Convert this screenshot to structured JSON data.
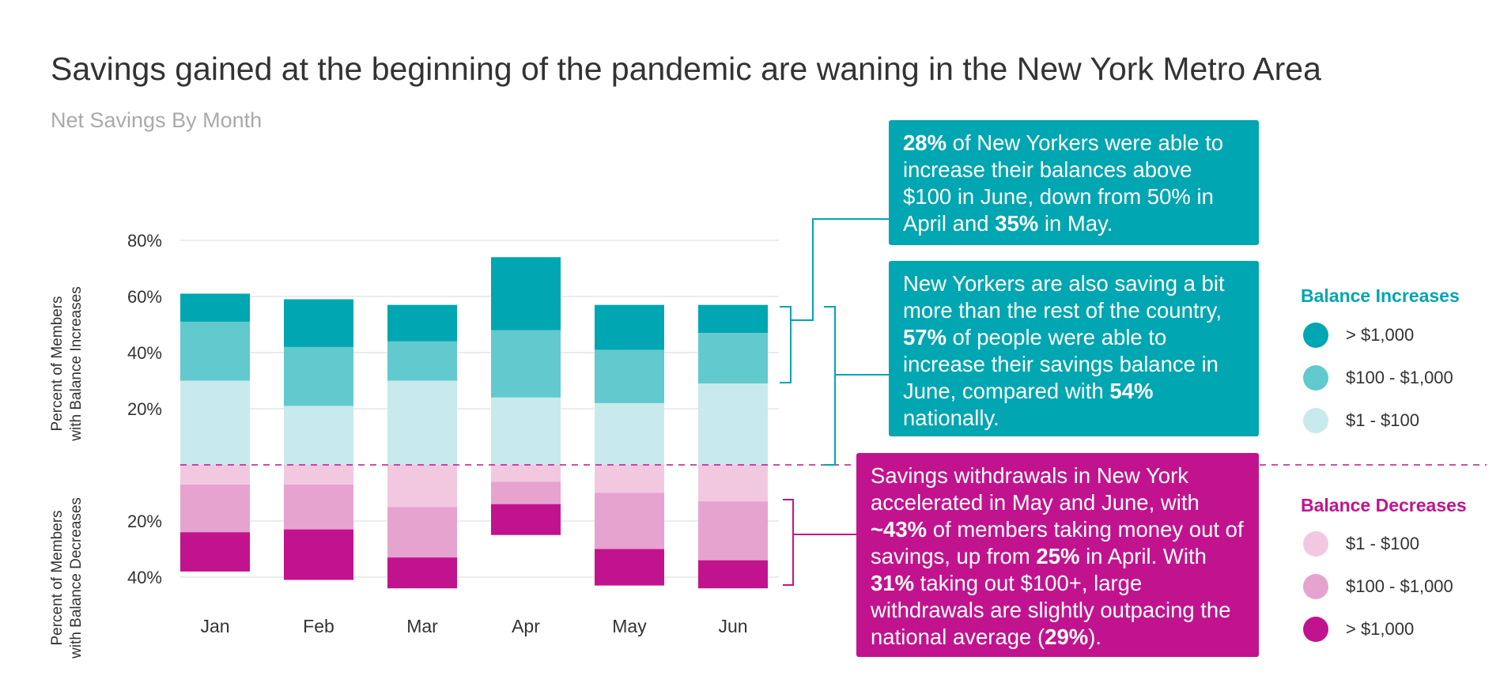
{
  "title": "Savings gained at the beginning of the pandemic are waning in the New York Metro Area",
  "subtitle": "Net Savings By Month",
  "colors": {
    "teal_dark": "#00a6b1",
    "teal_mid": "#62c9cf",
    "teal_light": "#c8eaec",
    "pink_light": "#f2c8e1",
    "pink_mid": "#e7a3cf",
    "magenta": "#c2138f",
    "grid": "#e6e6e6",
    "baseline": "#c2138f"
  },
  "callouts": {
    "c1": {
      "p1": "28%",
      "p2": " of New Yorkers were able to increase their balances above $100 in June, down from 50% in April and ",
      "p3": "35%",
      "p4": " in May."
    },
    "c2": {
      "p1": "New Yorkers are also saving a bit more than the rest of the country, ",
      "p2": "57%",
      "p3": " of people were able to increase their savings balance in June, compared with ",
      "p4": "54%",
      "p5": " nationally."
    },
    "c3": {
      "p1": "Savings withdrawals in New York accelerated in May and June, with ",
      "p2": "~43%",
      "p3": " of members taking money out of savings, up from ",
      "p4": "25%",
      "p5": " in April. With ",
      "p6": "31%",
      "p7": " taking out $100+, large withdrawals are slightly outpacing the national average (",
      "p8": "29%",
      "p9": ")."
    }
  },
  "legend": {
    "increases_title": "Balance Increases",
    "increases": [
      {
        "label": "> $1,000",
        "color": "#00a6b1"
      },
      {
        "label": "$100 - $1,000",
        "color": "#62c9cf"
      },
      {
        "label": "$1 - $100",
        "color": "#c8eaec"
      }
    ],
    "decreases_title": "Balance Decreases",
    "decreases": [
      {
        "label": "$1 - $100",
        "color": "#f2c8e1"
      },
      {
        "label": "$100 - $1,000",
        "color": "#e7a3cf"
      },
      {
        "label": "> $1,000",
        "color": "#c2138f"
      }
    ]
  },
  "chart_data": {
    "type": "bar",
    "stacked": true,
    "categories": [
      "Jan",
      "Feb",
      "Mar",
      "Apr",
      "May",
      "Jun"
    ],
    "ylabel_top": "Percent of Members with Balance Increases",
    "ylabel_bottom": "Percent of Members with Balance Decreases",
    "ylim_top": [
      0,
      80
    ],
    "ylim_bottom": [
      0,
      45
    ],
    "yticks_top": [
      "20%",
      "40%",
      "60%",
      "80%"
    ],
    "yticks_bottom": [
      "20%",
      "40%"
    ],
    "grid": true,
    "increase_series": [
      {
        "name": "$1 - $100",
        "color": "#c8eaec",
        "values": [
          30,
          21,
          30,
          24,
          22,
          29
        ]
      },
      {
        "name": "$100 - $1,000",
        "color": "#62c9cf",
        "values": [
          21,
          21,
          14,
          24,
          19,
          18
        ]
      },
      {
        "name": "> $1,000",
        "color": "#00a6b1",
        "values": [
          10,
          17,
          13,
          26,
          16,
          10
        ]
      }
    ],
    "decrease_series": [
      {
        "name": "$1 - $100",
        "color": "#f2c8e1",
        "values": [
          7,
          7,
          15,
          6,
          10,
          13
        ]
      },
      {
        "name": "$100 - $1,000",
        "color": "#e7a3cf",
        "values": [
          17,
          16,
          18,
          8,
          20,
          21
        ]
      },
      {
        "name": "> $1,000",
        "color": "#c2138f",
        "values": [
          14,
          18,
          11,
          11,
          13,
          10
        ]
      }
    ]
  }
}
